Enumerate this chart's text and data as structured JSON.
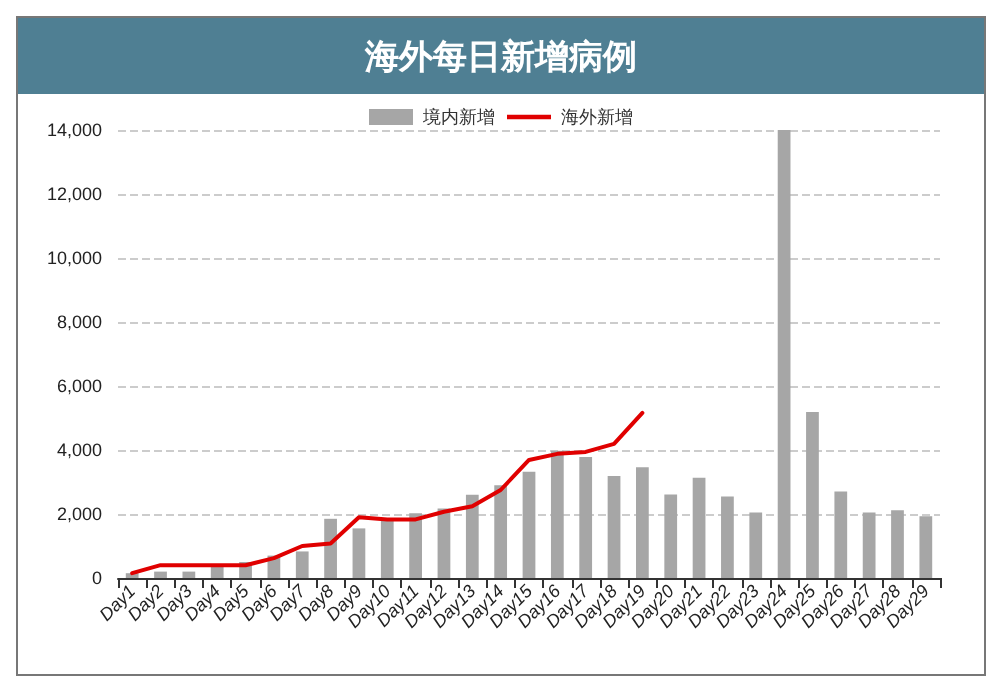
{
  "chart_data": {
    "type": "bar",
    "title": "海外每日新增病例",
    "categories": [
      "Day1",
      "Day2",
      "Day3",
      "Day4",
      "Day5",
      "Day6",
      "Day7",
      "Day8",
      "Day9",
      "Day10",
      "Day11",
      "Day12",
      "Day13",
      "Day14",
      "Day15",
      "Day16",
      "Day17",
      "Day18",
      "Day19",
      "Day20",
      "Day21",
      "Day22",
      "Day23",
      "Day24",
      "Day25",
      "Day26",
      "Day27",
      "Day28",
      "Day29"
    ],
    "series": [
      {
        "name": "境内新增",
        "color": "#a6a6a6",
        "values": [
          150,
          200,
          200,
          350,
          500,
          700,
          830,
          1850,
          1550,
          1850,
          2020,
          2170,
          2600,
          2900,
          3320,
          3980,
          3780,
          3190,
          3460,
          2610,
          3130,
          2550,
          2050,
          14000,
          5190,
          2700,
          2050,
          2120,
          1930
        ]
      },
      {
        "name": "海外新增",
        "type": "line",
        "color": "#e00000",
        "values": [
          150,
          400,
          400,
          400,
          400,
          620,
          1000,
          1080,
          1900,
          1830,
          1830,
          2070,
          2240,
          2750,
          3690,
          3880,
          3940,
          4190,
          5160,
          null,
          null,
          null,
          null,
          null,
          null,
          null,
          null,
          null,
          null
        ]
      }
    ],
    "ylim": [
      0,
      14000
    ],
    "yticks": [
      0,
      {
        "value": 2000,
        "label": "2,000"
      },
      {
        "value": 4000,
        "label": "4,000"
      },
      {
        "value": 6000,
        "label": "6,000"
      },
      {
        "value": 8000,
        "label": "8,000"
      },
      {
        "value": 10000,
        "label": "10,000"
      },
      {
        "value": 12000,
        "label": "12,000"
      },
      {
        "value": 14000,
        "label": "14,000"
      }
    ],
    "grid": "y",
    "legend": "top",
    "marker": "none",
    "line_style": "solid"
  }
}
